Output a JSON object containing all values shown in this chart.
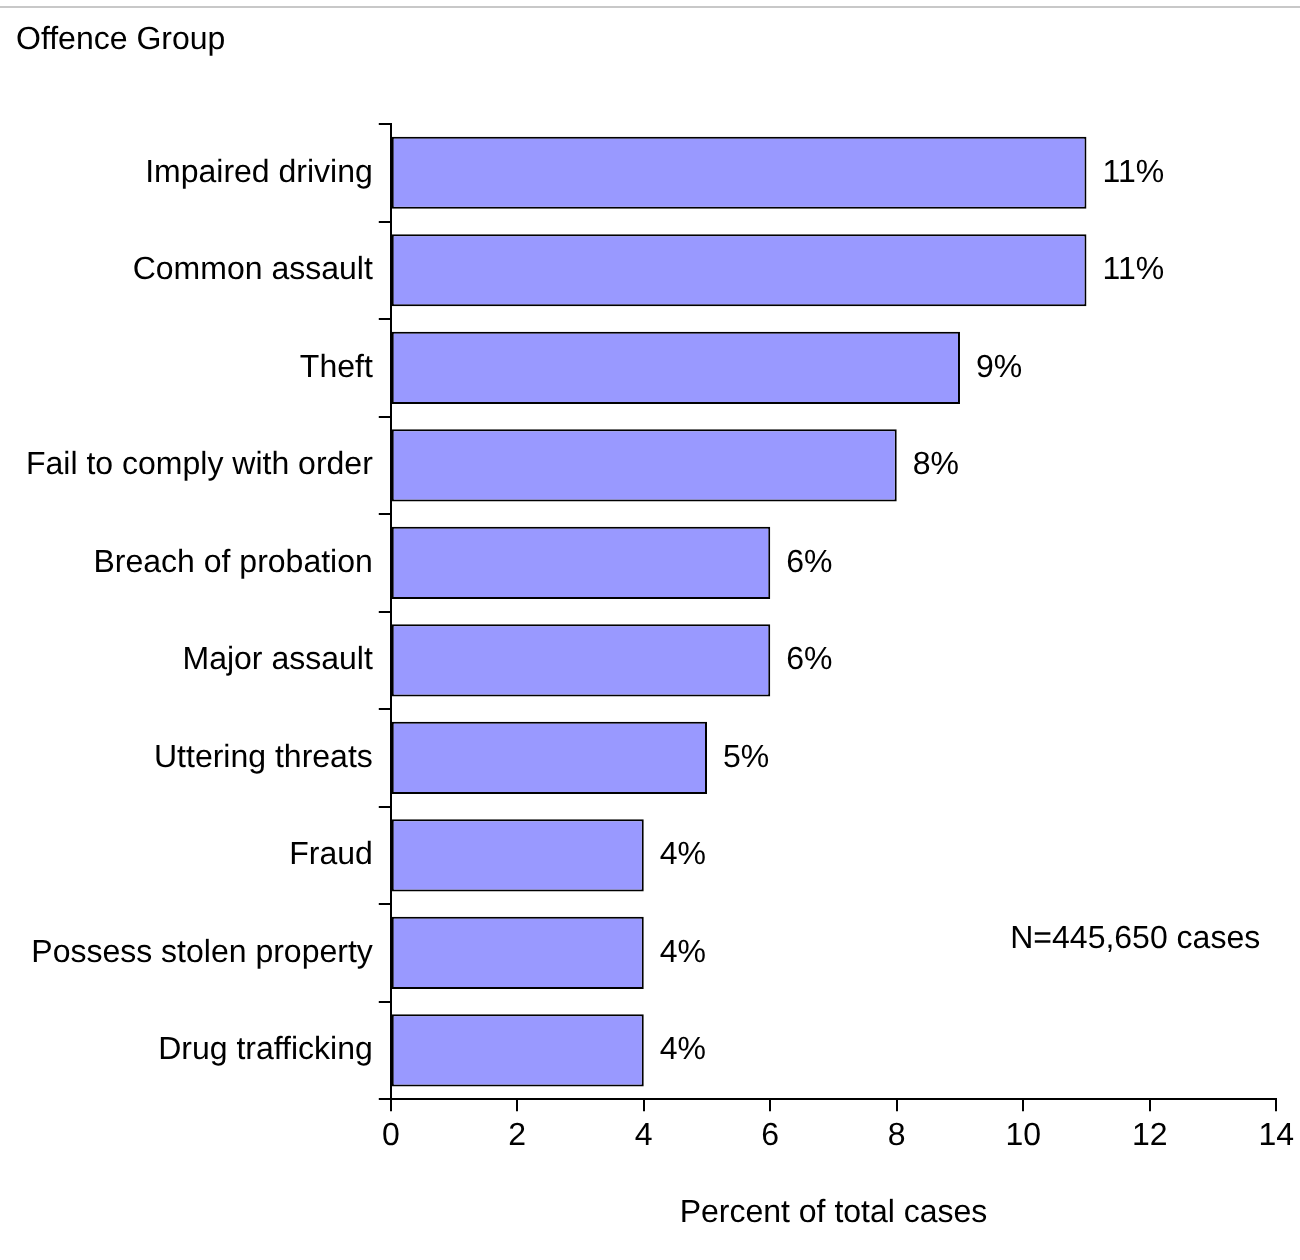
{
  "chart_data": {
    "type": "bar",
    "orientation": "horizontal",
    "ylabel": "Offence Group",
    "xlabel": "Percent of total cases",
    "categories": [
      "Impaired driving",
      "Common assault",
      "Theft",
      "Fail to comply with order",
      "Breach of probation",
      "Major assault",
      "Uttering threats",
      "Fraud",
      "Possess stolen property",
      "Drug trafficking"
    ],
    "values": [
      11,
      11,
      9,
      8,
      6,
      6,
      5,
      4,
      4,
      4
    ],
    "value_labels": [
      "11%",
      "11%",
      "9%",
      "8%",
      "6%",
      "6%",
      "5%",
      "4%",
      "4%",
      "4%"
    ],
    "color": "#9999ff",
    "xlim": [
      0,
      14
    ],
    "xticks": [
      0,
      2,
      4,
      6,
      8,
      10,
      12,
      14
    ],
    "grid": false,
    "legend": false,
    "annotations": [
      "N=445,650 cases"
    ]
  }
}
